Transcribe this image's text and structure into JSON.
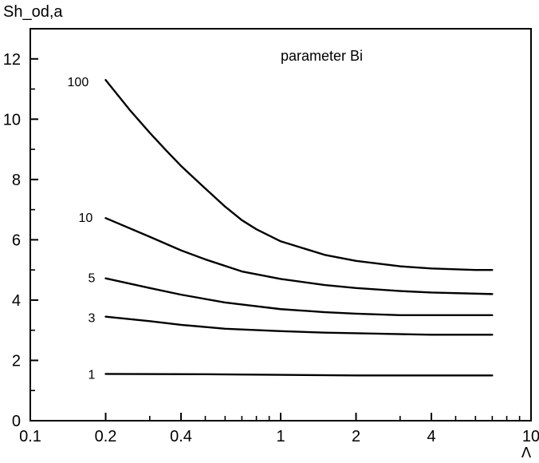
{
  "chart_data": {
    "type": "line",
    "title": "",
    "xlabel": "Λ",
    "ylabel": "Sh_od,a",
    "x_scale": "log",
    "xlim": [
      0.1,
      10
    ],
    "ylim": [
      0,
      13
    ],
    "x_ticks": [
      {
        "value": 0.1,
        "label": "0.1"
      },
      {
        "value": 0.2,
        "label": "0.2"
      },
      {
        "value": 0.4,
        "label": "0.4"
      },
      {
        "value": 1,
        "label": "1"
      },
      {
        "value": 2,
        "label": "2"
      },
      {
        "value": 4,
        "label": "4"
      },
      {
        "value": 10,
        "label": "10"
      }
    ],
    "y_ticks": [
      {
        "value": 0,
        "label": "0"
      },
      {
        "value": 2,
        "label": "2"
      },
      {
        "value": 4,
        "label": "4"
      },
      {
        "value": 6,
        "label": "6"
      },
      {
        "value": 8,
        "label": "8"
      },
      {
        "value": 10,
        "label": "10"
      },
      {
        "value": 12,
        "label": "12"
      }
    ],
    "annotation": "parameter  Bi",
    "grid": false,
    "series": [
      {
        "name": "100",
        "x": [
          0.2,
          0.25,
          0.3,
          0.35,
          0.4,
          0.5,
          0.6,
          0.7,
          0.8,
          1.0,
          1.5,
          2.0,
          3.0,
          4.0,
          6.0,
          7.0
        ],
        "y": [
          11.3,
          10.3,
          9.55,
          8.95,
          8.45,
          7.7,
          7.1,
          6.65,
          6.35,
          5.95,
          5.5,
          5.3,
          5.12,
          5.05,
          5.0,
          5.0
        ]
      },
      {
        "name": "10",
        "x": [
          0.2,
          0.3,
          0.4,
          0.5,
          0.7,
          1.0,
          1.5,
          2.0,
          3.0,
          4.0,
          7.0
        ],
        "y": [
          6.72,
          6.1,
          5.65,
          5.35,
          4.95,
          4.7,
          4.5,
          4.4,
          4.3,
          4.25,
          4.2
        ]
      },
      {
        "name": "5",
        "x": [
          0.2,
          0.3,
          0.4,
          0.6,
          1.0,
          1.5,
          2.0,
          3.0,
          4.0,
          7.0
        ],
        "y": [
          4.72,
          4.4,
          4.18,
          3.92,
          3.7,
          3.6,
          3.55,
          3.5,
          3.5,
          3.5
        ]
      },
      {
        "name": "3",
        "x": [
          0.2,
          0.3,
          0.4,
          0.6,
          1.0,
          1.5,
          2.0,
          3.0,
          4.0,
          7.0
        ],
        "y": [
          3.45,
          3.3,
          3.18,
          3.05,
          2.97,
          2.92,
          2.9,
          2.87,
          2.85,
          2.85
        ]
      },
      {
        "name": "1",
        "x": [
          0.2,
          0.5,
          1.0,
          2.0,
          4.0,
          7.0
        ],
        "y": [
          1.55,
          1.54,
          1.52,
          1.5,
          1.5,
          1.5
        ]
      }
    ]
  },
  "colors": {
    "line": "#000000",
    "background": "#ffffff"
  }
}
